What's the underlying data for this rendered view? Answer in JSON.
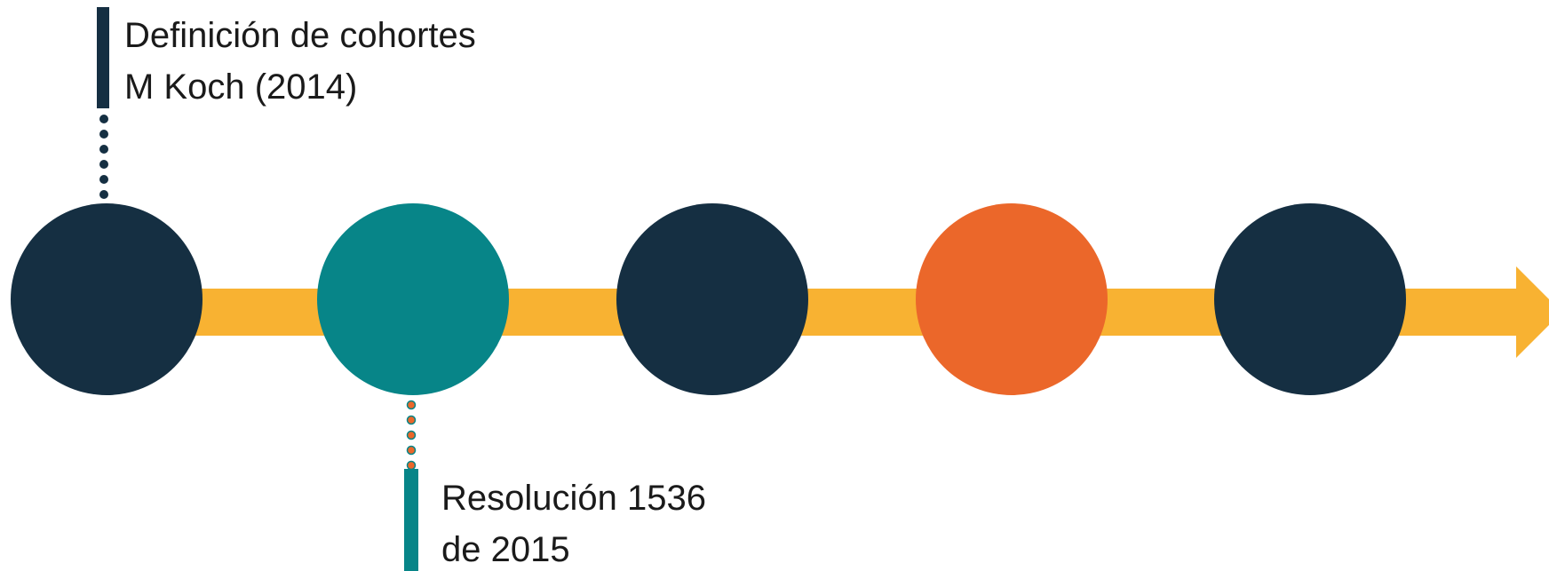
{
  "colors": {
    "navy": "#152f42",
    "teal": "#078588",
    "orange": "#eb672a",
    "arrow_yellow": "#f8b232",
    "dot_orange": "#eb672a"
  },
  "timeline": {
    "milestones": [
      {
        "color": "#152f42",
        "label_lines": [
          "Definición de cohortes",
          "M Koch (2014)"
        ],
        "label_side": "top"
      },
      {
        "color": "#078588",
        "label_lines": [
          "Resolución 1536",
          "de 2015"
        ],
        "label_side": "bottom"
      },
      {
        "color": "#152f42",
        "label_lines": [],
        "label_side": "none"
      },
      {
        "color": "#eb672a",
        "label_lines": [],
        "label_side": "none"
      },
      {
        "color": "#152f42",
        "label_lines": [],
        "label_side": "none"
      }
    ]
  }
}
